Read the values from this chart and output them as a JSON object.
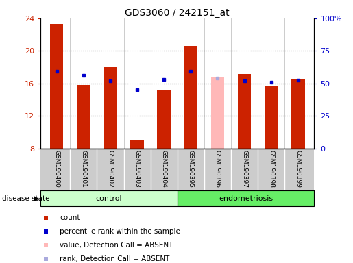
{
  "title": "GDS3060 / 242151_at",
  "samples": [
    "GSM190400",
    "GSM190401",
    "GSM190402",
    "GSM190403",
    "GSM190404",
    "GSM190395",
    "GSM190396",
    "GSM190397",
    "GSM190398",
    "GSM190399"
  ],
  "bar_values": [
    23.3,
    15.8,
    18.0,
    9.0,
    15.2,
    20.6,
    null,
    17.2,
    15.7,
    16.6
  ],
  "bar_absent_values": [
    null,
    null,
    null,
    null,
    null,
    null,
    16.8,
    null,
    null,
    null
  ],
  "dot_values": [
    17.5,
    17.0,
    16.3,
    15.2,
    16.5,
    17.5,
    null,
    16.35,
    16.15,
    16.45
  ],
  "dot_absent_values": [
    null,
    null,
    null,
    null,
    null,
    null,
    16.7,
    null,
    null,
    null
  ],
  "bar_color": "#cc2200",
  "bar_absent_color": "#ffb8b8",
  "dot_color": "#0000cc",
  "dot_absent_color": "#aaaadd",
  "ylim": [
    8,
    24
  ],
  "yticks": [
    8,
    12,
    16,
    20,
    24
  ],
  "ytick_labels": [
    "8",
    "12",
    "16",
    "20",
    "24"
  ],
  "right_yticks": [
    0,
    25,
    50,
    75,
    100
  ],
  "right_ytick_labels": [
    "0",
    "25",
    "50",
    "75",
    "100%"
  ],
  "gridlines": [
    12,
    16,
    20
  ],
  "group_control_label": "control",
  "group_endo_label": "endometriosis",
  "group_control_color": "#ccffcc",
  "group_endo_color": "#66ee66",
  "disease_state_label": "disease state",
  "legend_items": [
    {
      "label": "count",
      "color": "#cc2200"
    },
    {
      "label": "percentile rank within the sample",
      "color": "#0000cc"
    },
    {
      "label": "value, Detection Call = ABSENT",
      "color": "#ffb8b8"
    },
    {
      "label": "rank, Detection Call = ABSENT",
      "color": "#aaaadd"
    }
  ],
  "sample_bg_color": "#cccccc",
  "bar_width": 0.5,
  "title_fontsize": 10,
  "tick_fontsize": 8,
  "label_fontsize": 8
}
